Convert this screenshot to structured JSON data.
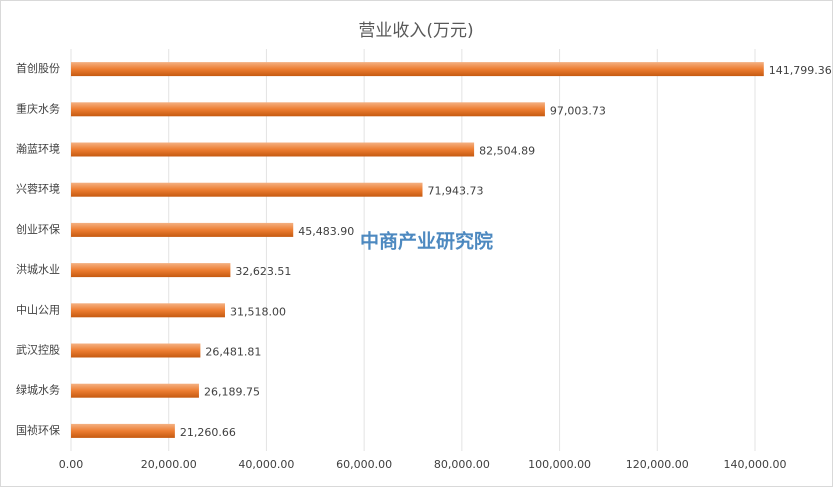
{
  "chart_data": {
    "type": "barh",
    "title": "营业收入(万元)",
    "watermark": "中商产业研究院",
    "categories": [
      "首创股份",
      "重庆水务",
      "瀚蓝环境",
      "兴蓉环境",
      "创业环保",
      "洪城水业",
      "中山公用",
      "武汉控股",
      "绿城水务",
      "国祯环保"
    ],
    "values": [
      141799.36,
      97003.73,
      82504.89,
      71943.73,
      45483.9,
      32623.51,
      31518.0,
      26481.81,
      26189.75,
      21260.66
    ],
    "value_labels": [
      "141,799.36",
      "97,003.73",
      "82,504.89",
      "71,943.73",
      "45,483.90",
      "32,623.51",
      "31,518.00",
      "26,481.81",
      "26,189.75",
      "21,260.66"
    ],
    "color": "#ed7d31",
    "xlim": [
      0,
      140000
    ],
    "xticks": [
      {
        "value": 0,
        "label": "0.00"
      },
      {
        "value": 20000,
        "label": "20,000.00"
      },
      {
        "value": 40000,
        "label": "40,000.00"
      },
      {
        "value": 60000,
        "label": "60,000.00"
      },
      {
        "value": 80000,
        "label": "80,000.00"
      },
      {
        "value": 100000,
        "label": "100,000.00"
      },
      {
        "value": 120000,
        "label": "120,000.00"
      },
      {
        "value": 140000,
        "label": "140,000.00"
      }
    ],
    "grid": true
  }
}
